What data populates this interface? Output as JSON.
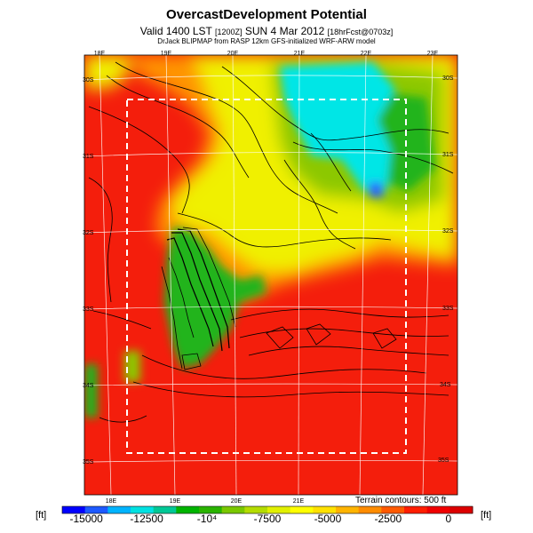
{
  "header": {
    "title": "OvercastDevelopment Potential",
    "valid_line": "Valid 1400 LST",
    "valid_code": "[1200Z]",
    "valid_date": "SUN 4 Mar 2012",
    "valid_fcst": "[18hrFcst@0703z]",
    "credits": "DrJack BLIPMAP from RASP 12km GFS-initialized WRF-ARW model"
  },
  "map": {
    "lon_labels_top": [
      "18E",
      "19E",
      "20E",
      "21E",
      "22E",
      "23E"
    ],
    "lon_labels_bottom": [
      "18E",
      "19E",
      "20E",
      "21E"
    ],
    "lat_labels_left": [
      "30S",
      "31S",
      "32S",
      "33S",
      "34S",
      "35S"
    ],
    "lat_labels_right": [
      "30S",
      "31S",
      "32S",
      "33S",
      "34S",
      "35S"
    ],
    "terrain_note": "Terrain contours: 500 ft"
  },
  "colorbar": {
    "unit": "[ft]",
    "tick_labels": [
      "-15000",
      "-12500",
      "-10⁴",
      "-7500",
      "-5000",
      "-2500",
      "0"
    ],
    "tick_values": [
      -15000,
      -12500,
      -10000,
      -7500,
      -5000,
      -2500,
      0
    ],
    "range": [
      -16000,
      1000
    ],
    "colors": [
      "#0000ff",
      "#1e5aff",
      "#00b4ff",
      "#00e1e1",
      "#00c896",
      "#00b400",
      "#2ab400",
      "#7ac800",
      "#b4dc00",
      "#e1f000",
      "#ffff00",
      "#ffe100",
      "#ffb400",
      "#ff8c00",
      "#ff5a00",
      "#ff1e00",
      "#f00000",
      "#dc0000"
    ]
  },
  "colors": {
    "red": "#f41e0c",
    "orange": "#ff9400",
    "yellow": "#f0f000",
    "green": "#22b41e",
    "cyan": "#00e6e6",
    "blue": "#2a60ff"
  }
}
